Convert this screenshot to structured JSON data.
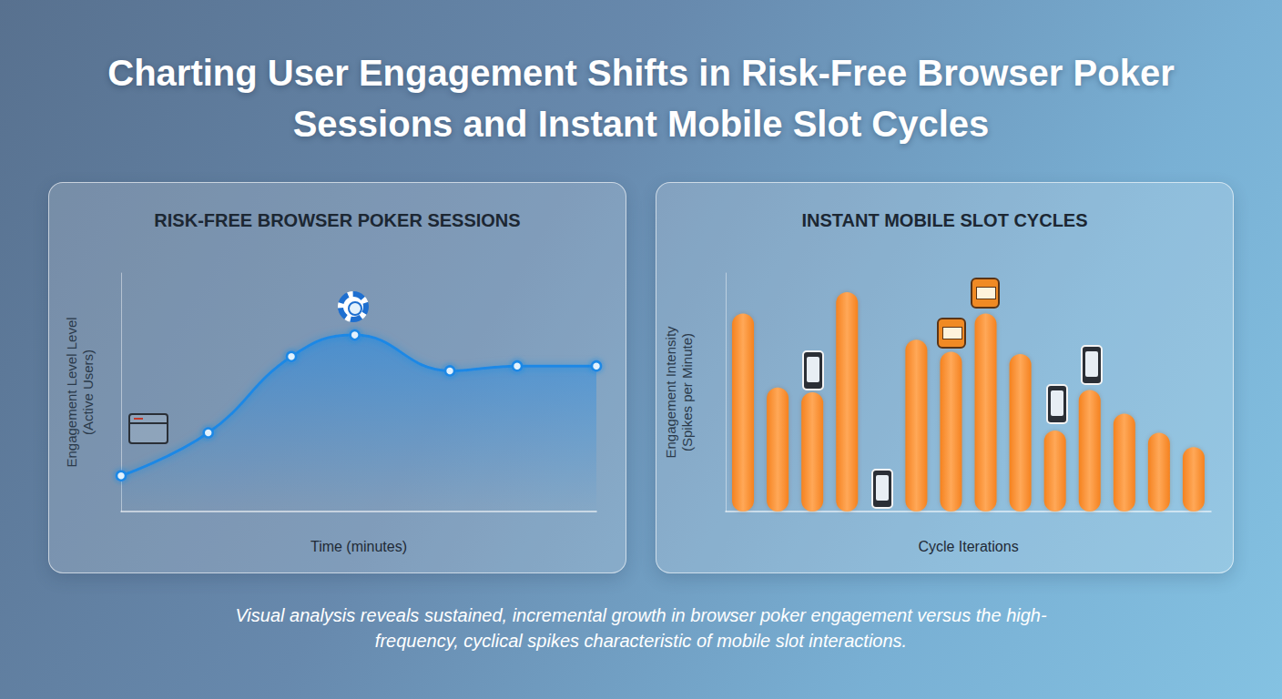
{
  "title": "Charting User Engagement Shifts in Risk-Free Browser Poker Sessions and Instant Mobile Slot Cycles",
  "caption": "Visual analysis reveals sustained, incremental growth in browser poker engagement versus the high-frequency, cyclical spikes characteristic of mobile slot interactions.",
  "chart_data": [
    {
      "type": "area",
      "title": "RISK-FREE BROWSER POKER SESSIONS",
      "x_label": "Time (minutes)",
      "y_label": "Engagement Level Level (Active Users)",
      "x": [
        0,
        11,
        21.5,
        29.5,
        41.5,
        50,
        60
      ],
      "values": [
        15,
        33,
        65,
        74,
        59,
        61,
        61
      ],
      "color": "#1e88e5",
      "xlim": [
        0,
        60
      ],
      "ylim": [
        0,
        100
      ],
      "tick_labels": false,
      "grid": false,
      "marker": "circle",
      "line_style": "smooth"
    },
    {
      "type": "bar",
      "title": "INSTANT MOBILE SLOT CYCLES",
      "x_label": "Cycle Iterations",
      "y_label": "Engagement Intensity (Spikes per Minute)",
      "categories": [
        null,
        null,
        null,
        null,
        null,
        null,
        null,
        null,
        null,
        null,
        null,
        null,
        null,
        null
      ],
      "values": [
        83,
        52,
        50,
        92,
        null,
        72,
        67,
        83,
        66,
        34,
        51,
        41,
        33,
        27
      ],
      "color": "#f5821f",
      "ylim": [
        0,
        100
      ],
      "tick_labels": false,
      "grid": false
    }
  ]
}
